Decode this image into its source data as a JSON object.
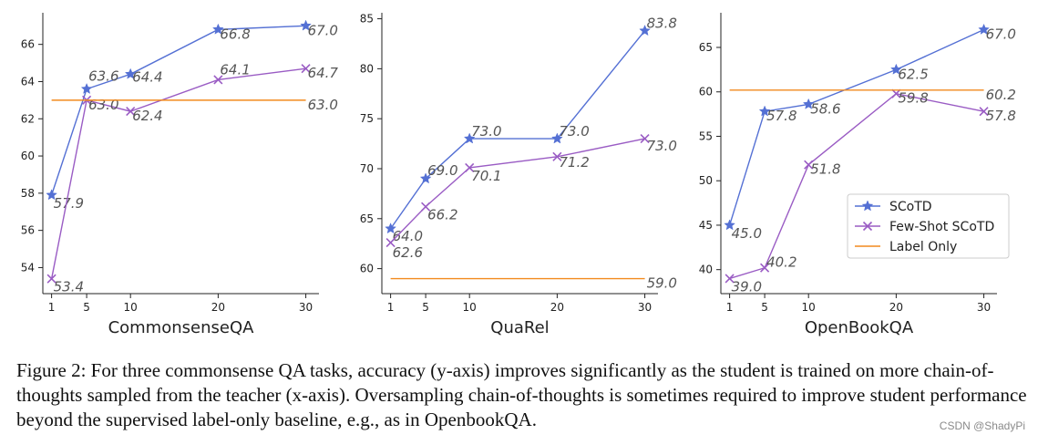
{
  "chart_data": [
    {
      "type": "line",
      "title": "",
      "xlabel": "CommonsenseQA",
      "ylabel": "",
      "x": [
        1,
        5,
        10,
        20,
        30
      ],
      "xlim": [
        0,
        31.5
      ],
      "ylim": [
        52.6,
        67.7
      ],
      "yticks": [
        54,
        56,
        58,
        60,
        62,
        64,
        66
      ],
      "series": [
        {
          "name": "SCoTD",
          "values": [
            57.9,
            63.6,
            64.4,
            66.8,
            67.0
          ],
          "labels": [
            "57.9",
            "63.6",
            "64.4",
            "66.8",
            "67.0"
          ],
          "color": "#5470d4",
          "marker": "star"
        },
        {
          "name": "Few-Shot SCoTD",
          "values": [
            53.4,
            63.0,
            62.4,
            64.1,
            64.7
          ],
          "labels": [
            "53.4",
            "63.0",
            "62.4",
            "64.1",
            "64.7"
          ],
          "color": "#9a5cc4",
          "marker": "x"
        },
        {
          "name": "Label Only",
          "values": [
            63.0,
            63.0,
            63.0,
            63.0,
            63.0
          ],
          "labels": [
            "",
            "",
            "",
            "",
            "63.0"
          ],
          "color": "#f28a1e",
          "marker": "none"
        }
      ],
      "legend": false
    },
    {
      "type": "line",
      "title": "",
      "xlabel": "QuaRel",
      "ylabel": "",
      "x": [
        1,
        5,
        10,
        20,
        30
      ],
      "xlim": [
        0,
        31.5
      ],
      "ylim": [
        57.5,
        85.6
      ],
      "yticks": [
        60,
        65,
        70,
        75,
        80,
        85
      ],
      "series": [
        {
          "name": "SCoTD",
          "values": [
            64.0,
            69.0,
            73.0,
            73.0,
            83.8
          ],
          "labels": [
            "64.0",
            "69.0",
            "73.0",
            "73.0",
            "83.8"
          ],
          "color": "#5470d4",
          "marker": "star"
        },
        {
          "name": "Few-Shot SCoTD",
          "values": [
            62.6,
            66.2,
            70.1,
            71.2,
            73.0
          ],
          "labels": [
            "62.6",
            "66.2",
            "70.1",
            "71.2",
            "73.0"
          ],
          "color": "#9a5cc4",
          "marker": "x"
        },
        {
          "name": "Label Only",
          "values": [
            59.0,
            59.0,
            59.0,
            59.0,
            59.0
          ],
          "labels": [
            "",
            "",
            "",
            "",
            "59.0"
          ],
          "color": "#f28a1e",
          "marker": "none"
        }
      ],
      "legend": false
    },
    {
      "type": "line",
      "title": "",
      "xlabel": "OpenBookQA",
      "ylabel": "",
      "x": [
        1,
        5,
        10,
        20,
        30
      ],
      "xlim": [
        0,
        31.5
      ],
      "ylim": [
        37.3,
        68.9
      ],
      "yticks": [
        40,
        45,
        50,
        55,
        60,
        65
      ],
      "series": [
        {
          "name": "SCoTD",
          "values": [
            45.0,
            57.8,
            58.6,
            62.5,
            67.0
          ],
          "labels": [
            "45.0",
            "57.8",
            "58.6",
            "62.5",
            "67.0"
          ],
          "color": "#5470d4",
          "marker": "star"
        },
        {
          "name": "Few-Shot SCoTD",
          "values": [
            39.0,
            40.2,
            51.8,
            59.8,
            57.8
          ],
          "labels": [
            "39.0",
            "40.2",
            "51.8",
            "59.8",
            "57.8"
          ],
          "color": "#9a5cc4",
          "marker": "x"
        },
        {
          "name": "Label Only",
          "values": [
            60.2,
            60.2,
            60.2,
            60.2,
            60.2
          ],
          "labels": [
            "",
            "",
            "",
            "",
            "60.2"
          ],
          "color": "#f28a1e",
          "marker": "none"
        }
      ],
      "legend": true,
      "legend_position": "lower-right"
    }
  ],
  "caption": "Figure 2: For three commonsense QA tasks, accuracy (y-axis) improves significantly as the student is trained on more chain-of-thoughts sampled from the teacher (x-axis). Oversampling chain-of-thoughts is sometimes required to improve student performance beyond the supervised label-only baseline, e.g., as in OpenbookQA.",
  "watermark": "CSDN @ShadyPi"
}
